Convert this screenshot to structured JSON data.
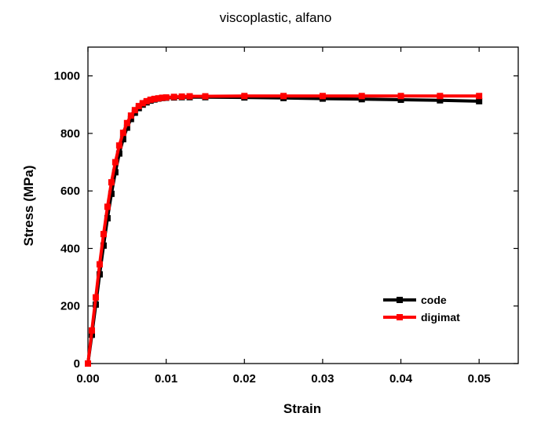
{
  "chart_data": {
    "type": "line",
    "title": "viscoplastic, alfano",
    "xlabel": "Strain",
    "ylabel": "Stress (MPa)",
    "xlim": [
      0.0,
      0.055
    ],
    "ylim": [
      0,
      1100
    ],
    "xticks": [
      0.0,
      0.01,
      0.02,
      0.03,
      0.04,
      0.05
    ],
    "xtick_labels": [
      "0.00",
      "0.01",
      "0.02",
      "0.03",
      "0.04",
      "0.05"
    ],
    "yticks": [
      0,
      200,
      400,
      600,
      800,
      1000
    ],
    "ytick_labels": [
      "0",
      "200",
      "400",
      "600",
      "800",
      "1000"
    ],
    "grid": false,
    "legend_position": "bottom-right",
    "series": [
      {
        "name": "code",
        "color": "#000000",
        "x": [
          0.0,
          0.0005,
          0.001,
          0.0015,
          0.002,
          0.0025,
          0.003,
          0.0035,
          0.004,
          0.0045,
          0.005,
          0.0055,
          0.006,
          0.0065,
          0.007,
          0.0075,
          0.008,
          0.0085,
          0.009,
          0.0095,
          0.01,
          0.011,
          0.012,
          0.013,
          0.015,
          0.02,
          0.025,
          0.03,
          0.035,
          0.04,
          0.045,
          0.05
        ],
        "y": [
          0,
          100,
          205,
          310,
          410,
          505,
          590,
          665,
          730,
          780,
          820,
          850,
          872,
          888,
          900,
          908,
          914,
          918,
          921,
          923,
          924,
          925,
          926,
          926,
          926,
          925,
          923,
          921,
          919,
          917,
          915,
          912
        ]
      },
      {
        "name": "digimat",
        "color": "#ff0000",
        "x": [
          0.0,
          0.0005,
          0.001,
          0.0015,
          0.002,
          0.0025,
          0.003,
          0.0035,
          0.004,
          0.0045,
          0.005,
          0.0055,
          0.006,
          0.0065,
          0.007,
          0.0075,
          0.008,
          0.0085,
          0.009,
          0.0095,
          0.01,
          0.011,
          0.012,
          0.013,
          0.015,
          0.02,
          0.025,
          0.03,
          0.035,
          0.04,
          0.045,
          0.05
        ],
        "y": [
          0,
          115,
          230,
          345,
          450,
          545,
          630,
          700,
          758,
          802,
          836,
          862,
          881,
          895,
          905,
          912,
          917,
          920,
          922,
          924,
          925,
          927,
          928,
          929,
          929,
          930,
          930,
          930,
          930,
          930,
          930,
          930
        ]
      }
    ]
  }
}
